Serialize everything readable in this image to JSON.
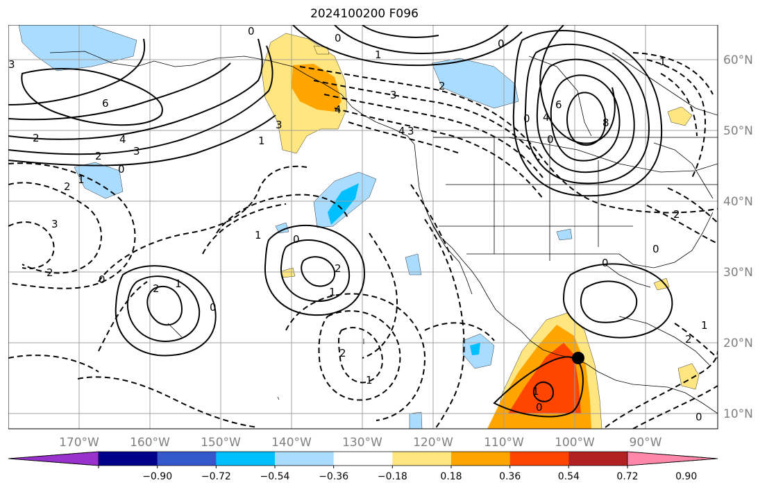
{
  "title": "2024100200 F096",
  "colors": {
    "land_outline": "#000000",
    "grid": "#a0a0a0",
    "contour": "#000000",
    "cyclone_marker": "#000000"
  },
  "longitude_labels": [
    "170°W",
    "160°W",
    "150°W",
    "140°W",
    "130°W",
    "120°W",
    "110°W",
    "100°W",
    "90°W"
  ],
  "latitude_labels": [
    "60°N",
    "50°N",
    "40°N",
    "30°N",
    "20°N",
    "10°N"
  ],
  "colorbar": {
    "colors": [
      "#9932cc",
      "#00008b",
      "#3458cc",
      "#00bfff",
      "#aadcff",
      "#ffffff",
      "#ffe680",
      "#ffa500",
      "#ff4500",
      "#b22222",
      "#ff88aa"
    ],
    "tick_labels": [
      "−0.90",
      "−0.72",
      "−0.54",
      "−0.36",
      "−0.18",
      "0.18",
      "0.36",
      "0.54",
      "0.72",
      "0.90"
    ]
  },
  "contour_labels": [
    "0",
    "0",
    "1",
    "0",
    "3",
    "3",
    "4",
    "2",
    "6",
    "2",
    "3",
    "2",
    "4",
    "3",
    "0",
    "3",
    "2",
    "3",
    "2",
    "1",
    "0",
    "2",
    "1",
    "0",
    "0",
    "1",
    "2",
    "1",
    "1",
    "0",
    "2",
    "1",
    "1",
    "2",
    "0",
    "0",
    "0",
    "1",
    "0",
    "0",
    "2",
    "4",
    "6",
    "8",
    "1",
    "4"
  ]
}
